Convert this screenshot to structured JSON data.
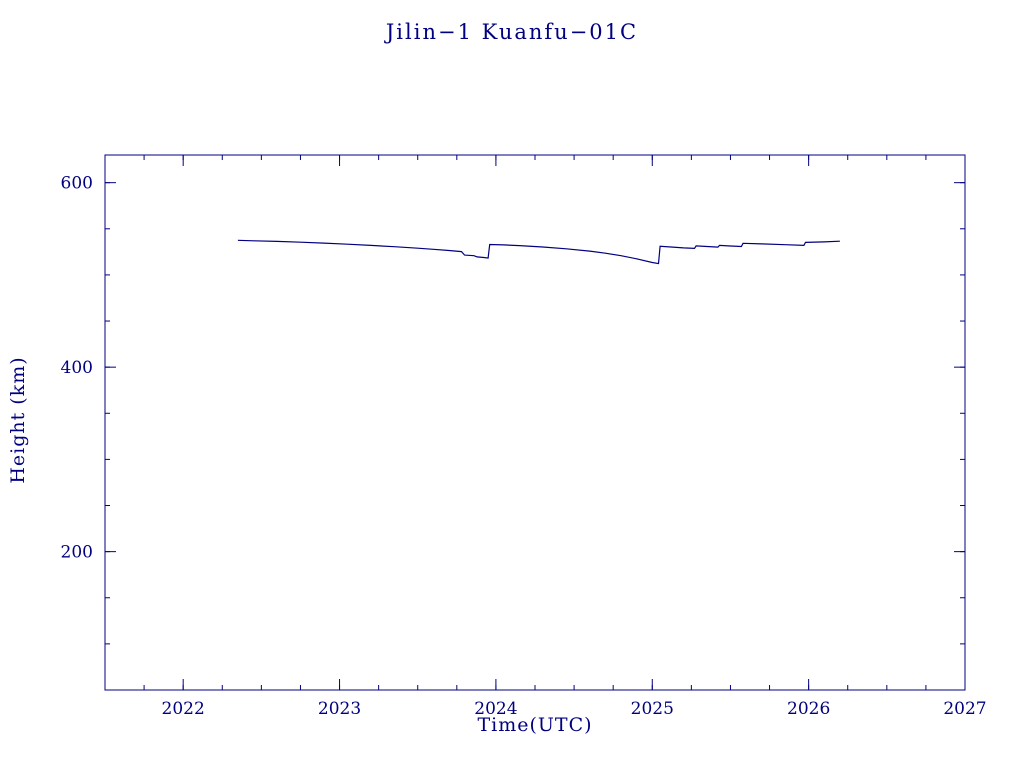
{
  "chart_data": {
    "type": "line",
    "title": "Jilin−1 Kuanfu−01C",
    "xlabel": "Time(UTC)",
    "ylabel": "Height (km)",
    "xlim": [
      2021.5,
      2027
    ],
    "ylim": [
      50,
      630
    ],
    "x_ticks": [
      2022,
      2023,
      2024,
      2025,
      2026,
      2027
    ],
    "y_ticks": [
      200,
      400,
      600
    ],
    "x_minor_step": 0.25,
    "y_minor_step": 50,
    "grid": "off",
    "legend": "none",
    "line_color": "#000080",
    "background_color": "#ffffff",
    "series": [
      {
        "name": "orbital-height-km",
        "points": [
          [
            2022.35,
            537.5
          ],
          [
            2022.45,
            537.0
          ],
          [
            2022.6,
            536.3
          ],
          [
            2022.75,
            535.5
          ],
          [
            2022.9,
            534.5
          ],
          [
            2023.05,
            533.3
          ],
          [
            2023.2,
            532.0
          ],
          [
            2023.35,
            530.6
          ],
          [
            2023.5,
            529.0
          ],
          [
            2023.6,
            527.8
          ],
          [
            2023.7,
            526.5
          ],
          [
            2023.78,
            525.3
          ],
          [
            2023.8,
            521.5
          ],
          [
            2023.86,
            520.8
          ],
          [
            2023.88,
            519.5
          ],
          [
            2023.93,
            518.8
          ],
          [
            2023.95,
            518.2
          ],
          [
            2023.96,
            533.0
          ],
          [
            2024.05,
            532.5
          ],
          [
            2024.15,
            531.8
          ],
          [
            2024.3,
            530.3
          ],
          [
            2024.45,
            528.3
          ],
          [
            2024.6,
            525.8
          ],
          [
            2024.7,
            523.5
          ],
          [
            2024.8,
            520.8
          ],
          [
            2024.9,
            517.5
          ],
          [
            2025.0,
            513.5
          ],
          [
            2025.04,
            512.3
          ],
          [
            2025.05,
            531.0
          ],
          [
            2025.12,
            530.3
          ],
          [
            2025.2,
            529.3
          ],
          [
            2025.27,
            528.7
          ],
          [
            2025.28,
            531.5
          ],
          [
            2025.35,
            530.8
          ],
          [
            2025.42,
            530.2
          ],
          [
            2025.43,
            532.0
          ],
          [
            2025.5,
            531.4
          ],
          [
            2025.57,
            530.8
          ],
          [
            2025.58,
            534.3
          ],
          [
            2025.7,
            533.6
          ],
          [
            2025.85,
            532.8
          ],
          [
            2025.97,
            532.0
          ],
          [
            2025.98,
            535.3
          ],
          [
            2026.1,
            535.8
          ],
          [
            2026.2,
            536.5
          ]
        ]
      }
    ]
  }
}
